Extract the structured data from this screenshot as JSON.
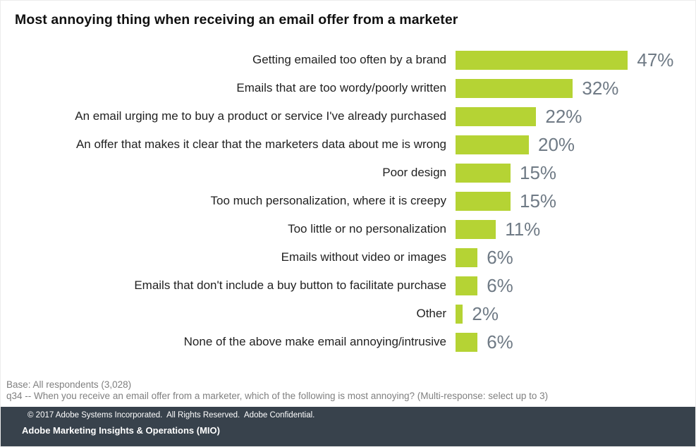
{
  "page": {
    "title": "Most annoying thing when receiving an email offer from a marketer"
  },
  "chart_data": {
    "type": "bar",
    "orientation": "horizontal",
    "title": "Most annoying thing when receiving an email offer from a marketer",
    "categories": [
      "Getting emailed too often by a brand",
      "Emails that are too wordy/poorly written",
      "An email urging me to buy a product or service I've already purchased",
      "An offer that makes it clear that the marketers data about me is wrong",
      "Poor design",
      "Too much personalization, where it is creepy",
      "Too little or no personalization",
      "Emails without video or images",
      "Emails that don't include a buy button to facilitate purchase",
      "Other",
      "None of the above make email annoying/intrusive"
    ],
    "values": [
      47,
      32,
      22,
      20,
      15,
      15,
      11,
      6,
      6,
      2,
      6
    ],
    "value_suffix": "%",
    "xlim": [
      0,
      50
    ],
    "grid": false,
    "legend": "none",
    "bar_color": "#b5d334",
    "value_label_color": "#6f7a85",
    "category_label_color": "#222222"
  },
  "footnotes": {
    "base": "Base: All respondents (3,028)",
    "question": "q34 -- When you receive an email offer from a marketer, which of the following is most annoying? (Multi-response: select up to 3)"
  },
  "footer": {
    "copyright": "© 2017 Adobe Systems Incorporated.  All Rights Reserved.  Adobe Confidential.",
    "org": "Adobe Marketing Insights & Operations (MIO)",
    "bg_color": "#38424c"
  }
}
